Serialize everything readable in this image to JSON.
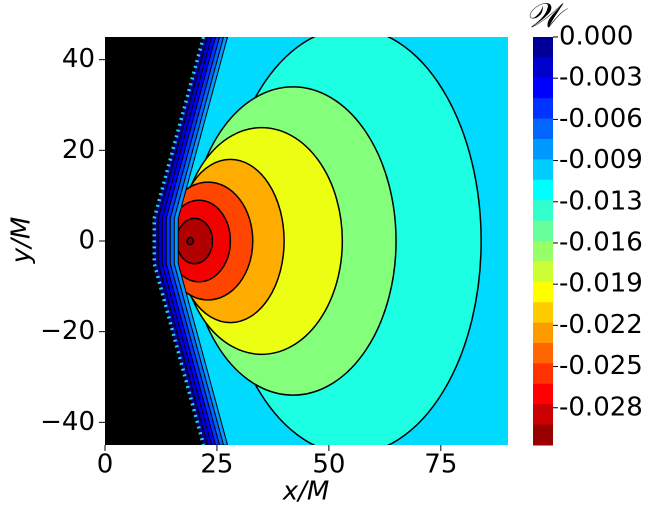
{
  "chart_data": {
    "type": "contour",
    "xlabel": "x/M",
    "ylabel": "y/M",
    "colorbar_label": "𝒲",
    "xlim": [
      0,
      90
    ],
    "ylim": [
      -45,
      45
    ],
    "xticks": [
      0,
      25,
      50,
      75
    ],
    "yticks": [
      {
        "value": -40,
        "label": "−40"
      },
      {
        "value": -20,
        "label": "−20"
      },
      0,
      20,
      40
    ],
    "colormap": "jet",
    "clim": [
      -0.031,
      0
    ],
    "n_levels": 20,
    "cticks": [
      {
        "value": 0,
        "label": "0.000"
      },
      {
        "value": -0.00313,
        "label": "-0.003"
      },
      {
        "value": -0.00626,
        "label": "-0.006"
      },
      {
        "value": -0.00939,
        "label": "-0.009"
      },
      {
        "value": -0.01252,
        "label": "-0.013"
      },
      {
        "value": -0.01565,
        "label": "-0.016"
      },
      {
        "value": -0.01878,
        "label": "-0.019"
      },
      {
        "value": -0.02191,
        "label": "-0.022"
      },
      {
        "value": -0.02504,
        "label": "-0.025"
      },
      {
        "value": -0.02817,
        "label": "-0.028"
      }
    ],
    "field_level": -0.0105,
    "contours": [
      {
        "level": -0.0125,
        "cx": 55,
        "rx": 29,
        "ry": 47
      },
      {
        "level": -0.0156,
        "cx": 42,
        "rx": 23,
        "ry": 34
      },
      {
        "level": -0.0188,
        "cx": 35,
        "rx": 18,
        "ry": 25
      },
      {
        "level": -0.0219,
        "cx": 28,
        "rx": 12,
        "ry": 18
      },
      {
        "level": -0.025,
        "cx": 23,
        "rx": 10,
        "ry": 13
      },
      {
        "level": -0.0275,
        "cx": 21,
        "rx": 7,
        "ry": 9
      },
      {
        "level": -0.0295,
        "cx": 20,
        "rx": 4,
        "ry": 5
      },
      {
        "level": -0.031,
        "cx": 19,
        "rx": 0.7,
        "ry": 0.8
      }
    ],
    "horizon": {
      "color": "#22d3e6",
      "x": [
        22,
        11,
        11,
        22
      ],
      "y": [
        45,
        5,
        -5,
        -45
      ]
    }
  }
}
